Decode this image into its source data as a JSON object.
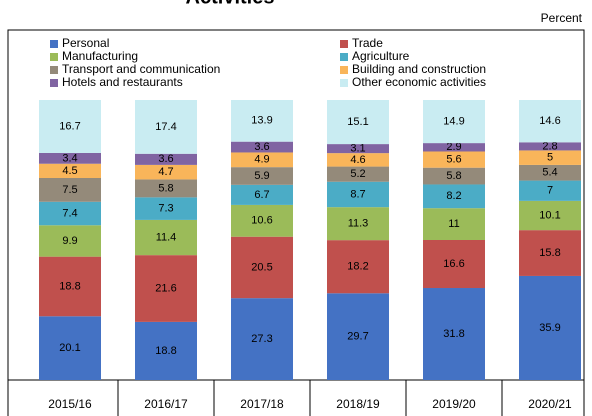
{
  "chart_data": {
    "type": "bar",
    "stacking": "percent",
    "title": "Activities",
    "unit_label": "Percent",
    "categories": [
      "2015/16",
      "2016/17",
      "2017/18",
      "2018/19",
      "2019/20",
      "2020/21"
    ],
    "series": [
      {
        "name": "Personal",
        "color": "#4472c4",
        "values": [
          20.1,
          18.8,
          27.3,
          29.7,
          31.8,
          35.9
        ]
      },
      {
        "name": "Trade",
        "color": "#c0504d",
        "values": [
          18.8,
          21.6,
          20.5,
          18.2,
          16.6,
          15.8
        ]
      },
      {
        "name": "Manufacturing",
        "color": "#9bbb59",
        "values": [
          9.9,
          11.4,
          10.6,
          11.3,
          11.0,
          10.1
        ]
      },
      {
        "name": "Agriculture",
        "color": "#4bacc6",
        "values": [
          7.4,
          7.3,
          6.7,
          8.7,
          8.2,
          7.0
        ]
      },
      {
        "name": "Transport and communication",
        "color": "#948a7a",
        "values": [
          7.5,
          5.8,
          5.9,
          5.2,
          5.8,
          5.4
        ]
      },
      {
        "name": "Building and construction",
        "color": "#f9b55a",
        "values": [
          4.5,
          4.7,
          4.9,
          4.6,
          5.6,
          5.0
        ]
      },
      {
        "name": "Hotels and restaurants",
        "color": "#8064a2",
        "values": [
          3.4,
          3.6,
          3.6,
          3.1,
          2.9,
          2.8
        ]
      },
      {
        "name": "Other economic activities",
        "color": "#c9ecf2",
        "values": [
          16.7,
          17.4,
          13.9,
          15.1,
          14.9,
          14.6
        ]
      }
    ],
    "ylim": [
      0,
      100
    ]
  }
}
